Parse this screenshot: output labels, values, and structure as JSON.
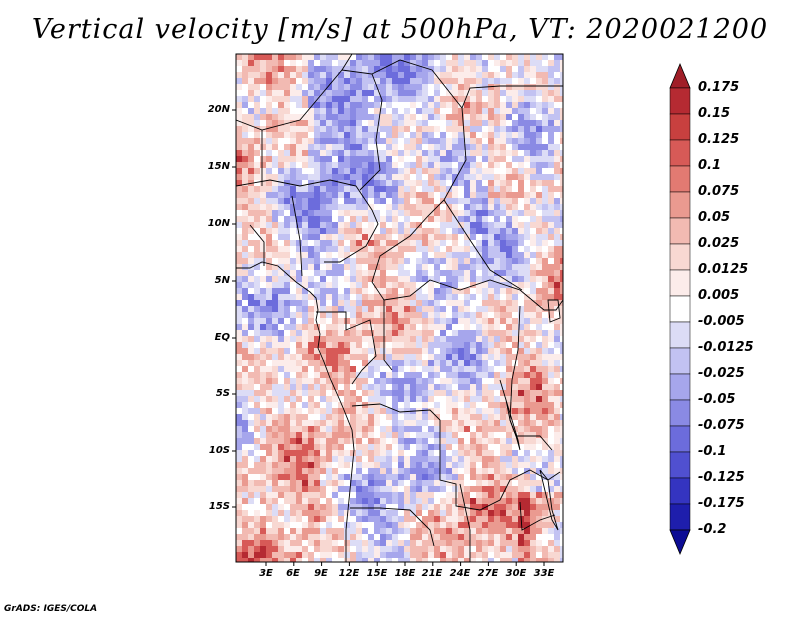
{
  "title": "Vertical velocity [m/s] at 500hPa, VT: 2020021200",
  "credit": "GrADS: IGES/COLA",
  "map": {
    "variable": "Vertical velocity",
    "units": "m/s",
    "level": "500hPa",
    "valid_time": "2020021200",
    "lat_labels": [
      "20N",
      "15N",
      "10N",
      "5N",
      "EQ",
      "5S",
      "10S",
      "15S"
    ],
    "lon_labels": [
      "3E",
      "6E",
      "9E",
      "12E",
      "15E",
      "18E",
      "21E",
      "24E",
      "27E",
      "30E",
      "33E"
    ]
  },
  "colorbar": {
    "labels": [
      "0.175",
      "0.15",
      "0.125",
      "0.1",
      "0.075",
      "0.05",
      "0.025",
      "0.0125",
      "0.005",
      "-0.005",
      "-0.0125",
      "-0.025",
      "-0.05",
      "-0.075",
      "-0.1",
      "-0.125",
      "-0.175",
      "-0.2"
    ],
    "colors": [
      "#a01e28",
      "#b52a32",
      "#c8403f",
      "#d75a57",
      "#e27a72",
      "#ea9a90",
      "#f2bab2",
      "#f8d8d2",
      "#fcecea",
      "#ffffff",
      "#dcdcf6",
      "#c2c2f2",
      "#a6a6ec",
      "#8a8ae4",
      "#6c6cdc",
      "#5050d0",
      "#3434c0",
      "#1e1eac",
      "#0c0c94"
    ]
  }
}
